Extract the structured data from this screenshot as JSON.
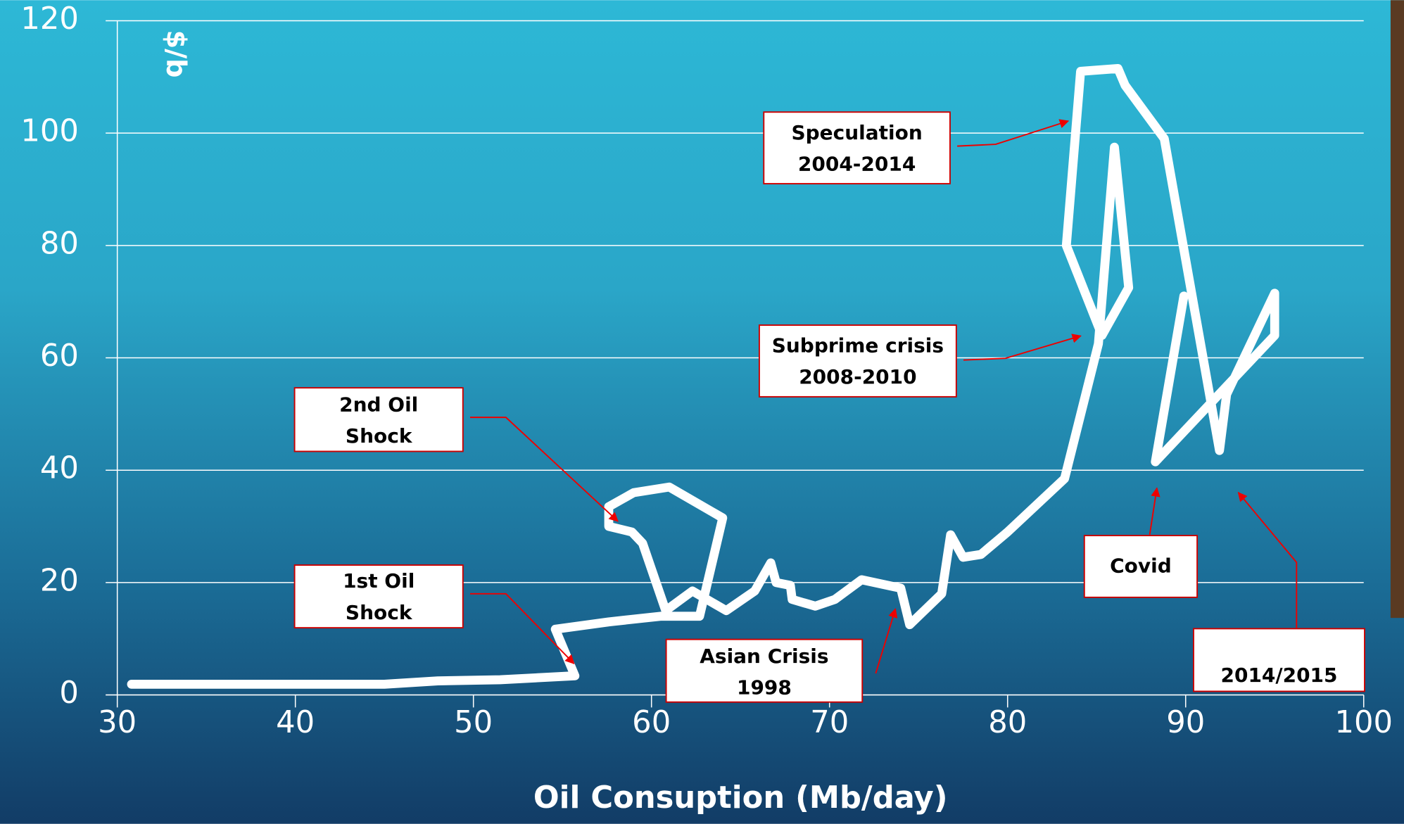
{
  "chart_data": {
    "type": "line",
    "x_label": "Oil Consuption (Mb/day)",
    "y_label": "$/b",
    "x": [
      30.8,
      45,
      48,
      51.5,
      55.7,
      54.6,
      57.6,
      60.5,
      62.7,
      64,
      61,
      59,
      57.6,
      57.6,
      58.9,
      59.5,
      60.8,
      62.3,
      64.2,
      65.8,
      66.7,
      67,
      67.8,
      67.9,
      69.2,
      70.3,
      71.8,
      74,
      74.5,
      76.3,
      76.8,
      77.5,
      78.5,
      80,
      83.2,
      85.1,
      86.0,
      86.8,
      85.3,
      83.3,
      84.1,
      86.2,
      86.6,
      88.8,
      91.9,
      92.3,
      95,
      95,
      88.3,
      89.9
    ],
    "series": [
      {
        "color": "#ffffff",
        "values": [
          1.9,
          1.9,
          2.5,
          2.7,
          3.4,
          11.7,
          13,
          14,
          14,
          31.5,
          37,
          36,
          33.5,
          30,
          29,
          27,
          15,
          18.5,
          15,
          18.5,
          23.5,
          20,
          19.5,
          17,
          15.8,
          17,
          20.5,
          19,
          12.5,
          18,
          28.5,
          24.5,
          25,
          29,
          38.5,
          62.5,
          97.5,
          72.5,
          64,
          80,
          111,
          111.5,
          108.5,
          99,
          43.5,
          53.5,
          71.5,
          64,
          41.5,
          71
        ]
      }
    ],
    "xlim": [
      30,
      100
    ],
    "xticks": [
      30,
      40,
      50,
      60,
      70,
      80,
      90,
      100
    ],
    "ylim": [
      0,
      120
    ],
    "yticks": [
      0,
      20,
      40,
      60,
      80,
      100,
      120
    ],
    "grid": true,
    "annotations": [
      {
        "lines": [
          "2nd Oil",
          "Shock"
        ]
      },
      {
        "lines": [
          "1st Oil",
          "Shock"
        ]
      },
      {
        "lines": [
          "Speculation",
          "2004-2014"
        ]
      },
      {
        "lines": [
          "Subprime crisis",
          "2008-2010"
        ]
      },
      {
        "lines": [
          "Asian Crisis",
          "1998"
        ]
      },
      {
        "lines": [
          "Covid"
        ]
      },
      {
        "lines": [
          "2014/2015"
        ]
      }
    ]
  }
}
